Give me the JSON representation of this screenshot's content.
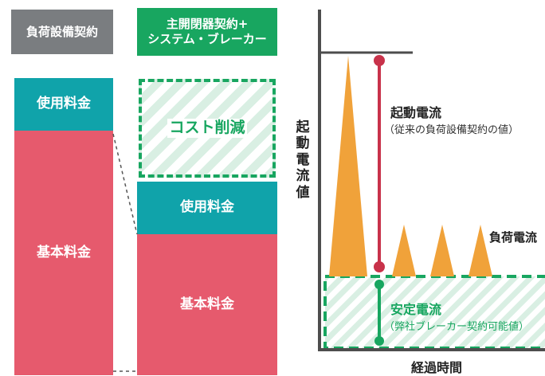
{
  "left_panel": {
    "header_current": "負荷設備契約",
    "header_proposed_line1": "主開閉器契約+",
    "header_proposed_line2": "システム・ブレーカー",
    "usage_fee_current": "使用料金",
    "basic_fee_current": "基本料金",
    "cost_reduction": "コスト削減",
    "usage_fee_proposed": "使用料金",
    "basic_fee_proposed": "基本料金"
  },
  "right_panel": {
    "y_axis_label": "起動電流値",
    "x_axis_label": "経過時間",
    "inrush_title": "起動電流",
    "inrush_sub": "（従来の負荷設備契約の値）",
    "load_current": "負荷電流",
    "stable_title": "安定電流",
    "stable_sub": "（弊社ブレーカー契約可能値）"
  },
  "colors": {
    "gray": "#7a7d80",
    "green": "#18a660",
    "teal": "#10a3aa",
    "pink": "#e65a6d",
    "orange": "#f0a23a",
    "crimson": "#c8324a"
  }
}
